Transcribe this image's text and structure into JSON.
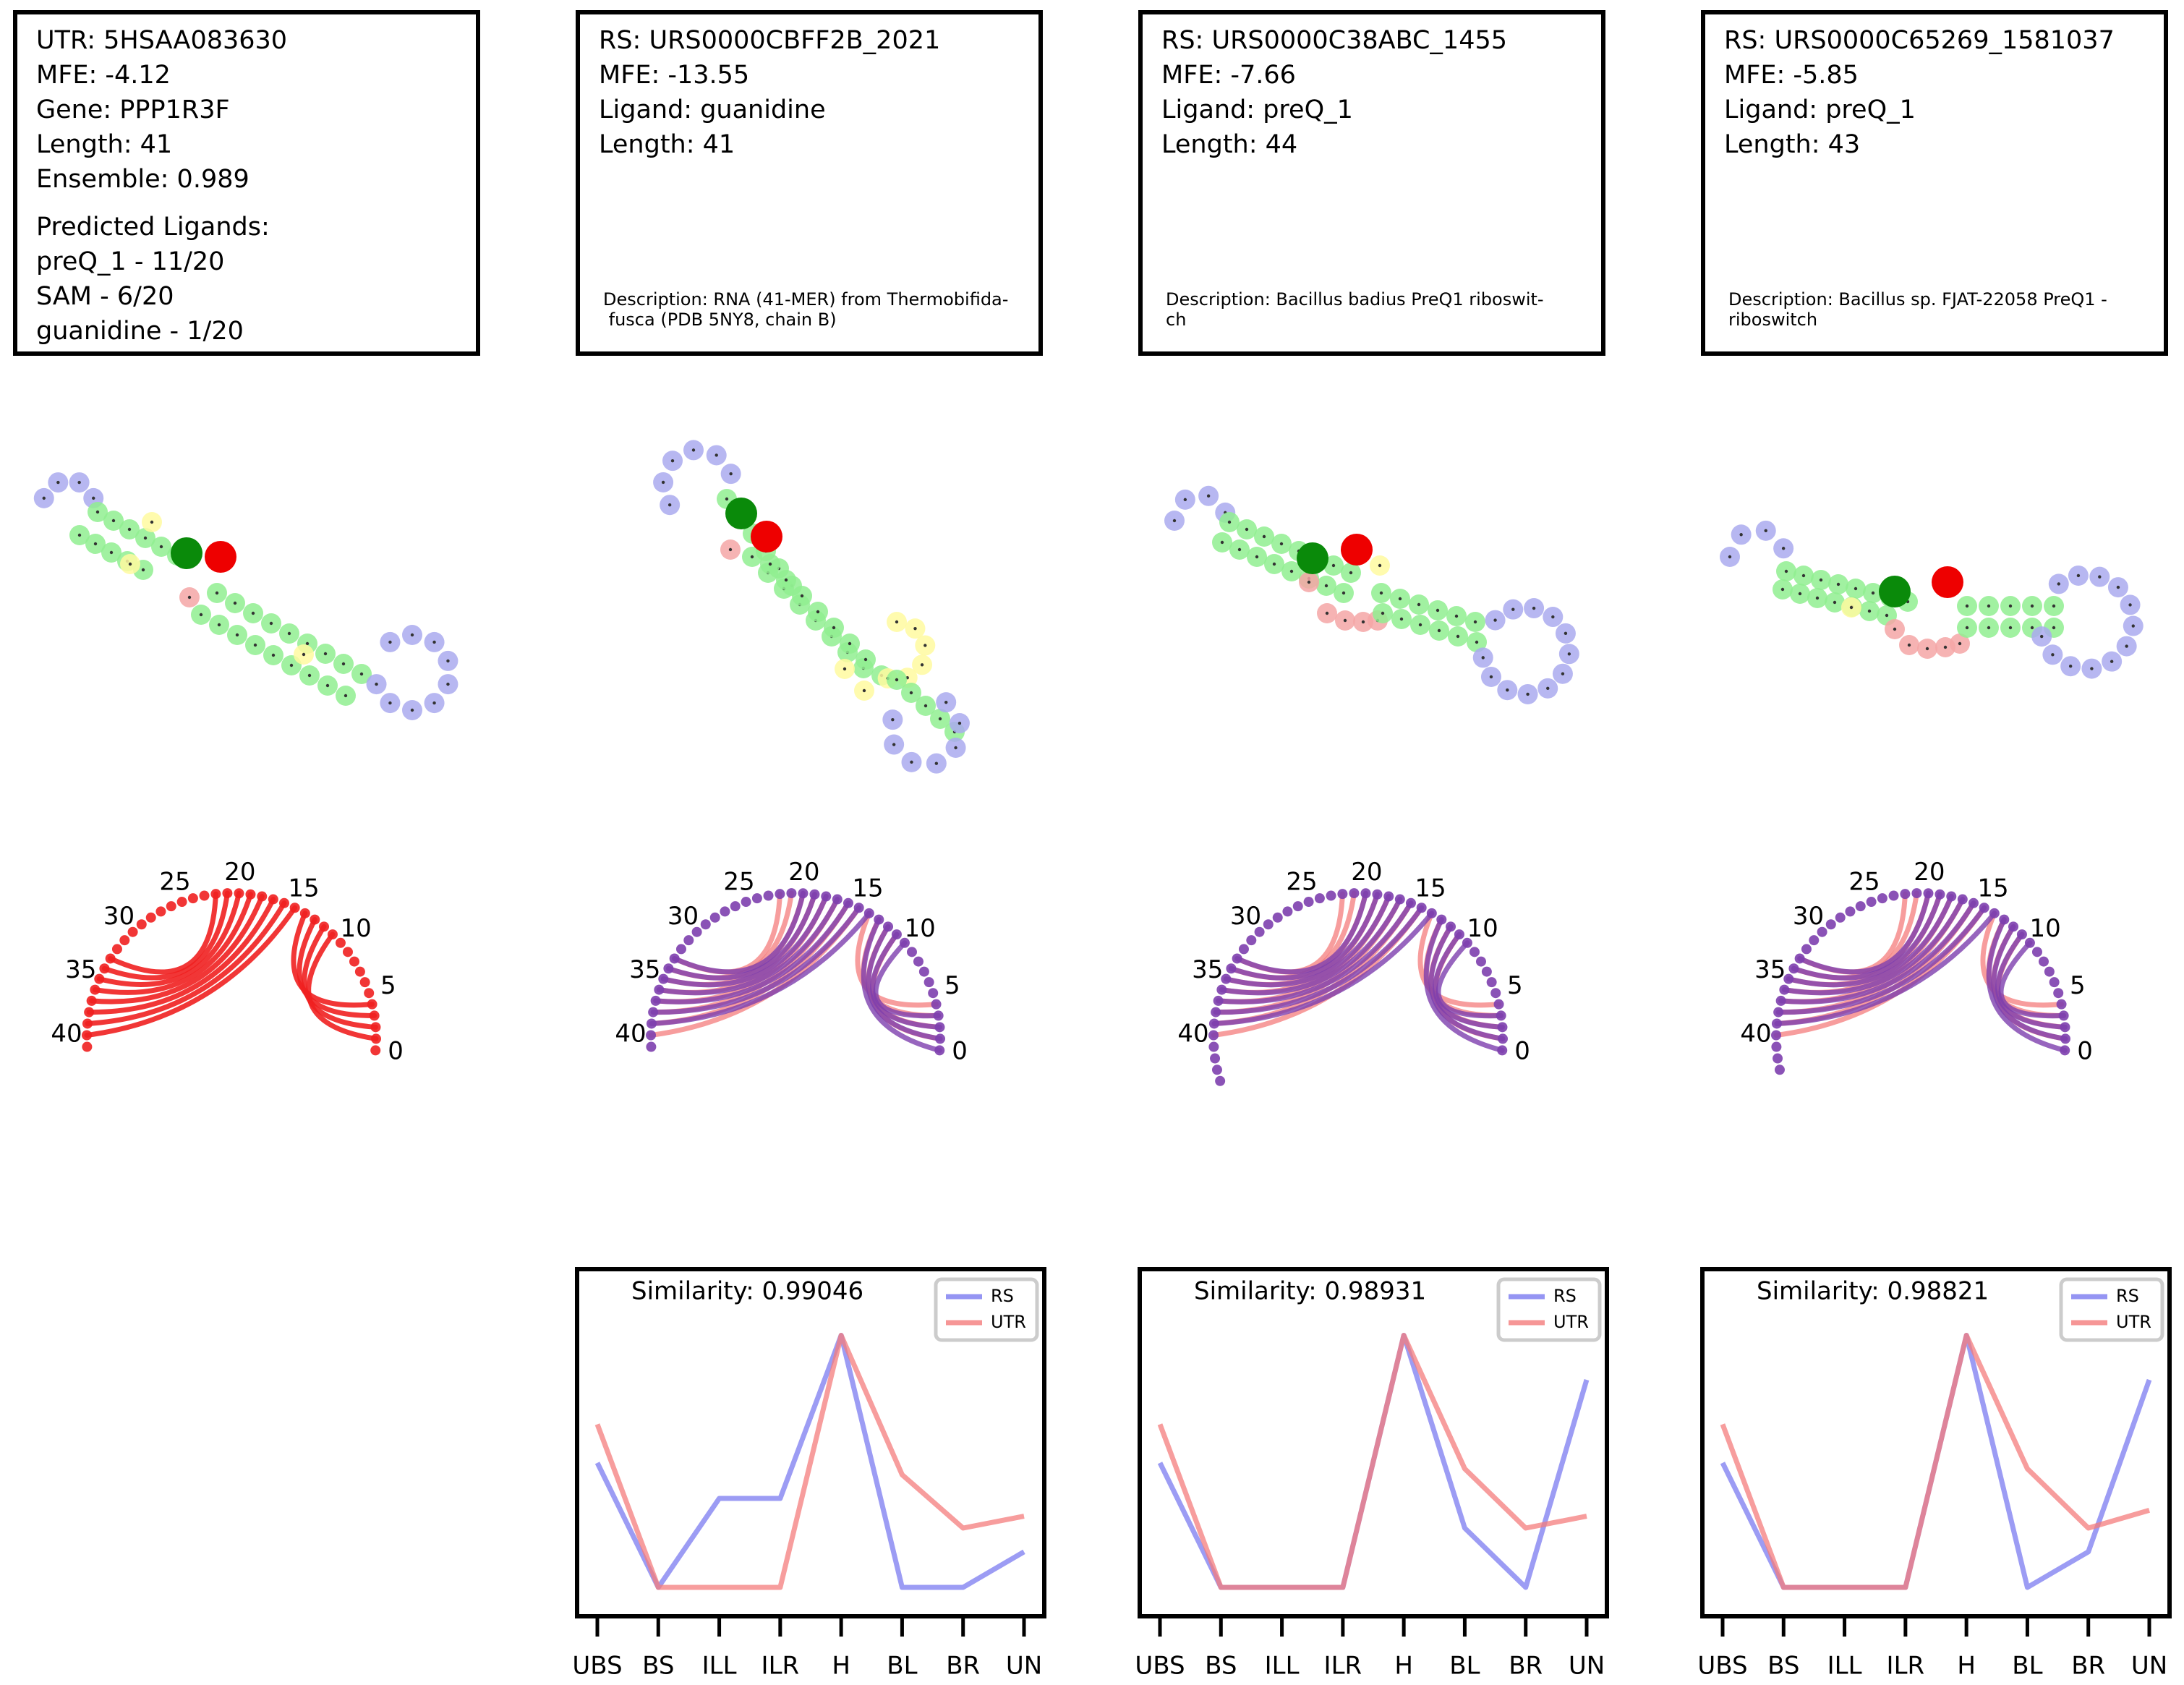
{
  "colors": {
    "rs": "#7b7bf0",
    "utr": "#f47c7c",
    "overlap": "#7d3fae",
    "utr_arc": "#f02020",
    "node_paired": "#90ee90",
    "node_loop": "#aaaaee",
    "node_bulge": "#fffaa0",
    "node_pink": "#f4a6a6",
    "marker_green": "#0a8a0a",
    "marker_red": "#ee0000"
  },
  "cards": [
    {
      "lines": [
        "UTR: 5HSAA083630",
        "MFE: -4.12",
        "Gene: PPP1R3F",
        "Length: 41",
        "Ensemble: 0.989"
      ],
      "lines2": [
        "Predicted Ligands:",
        "preQ_1 - 11/20",
        "SAM - 6/20",
        "guanidine - 1/20"
      ],
      "description": ""
    },
    {
      "lines": [
        "RS: URS0000CBFF2B_2021",
        "MFE: -13.55",
        "Ligand: guanidine",
        "Length: 41"
      ],
      "lines2": [],
      "description": "Description: RNA (41-MER) from Thermobifida-\n fusca (PDB 5NY8, chain B)"
    },
    {
      "lines": [
        "RS: URS0000C38ABC_1455",
        "MFE: -7.66",
        "Ligand: preQ_1",
        "Length: 44"
      ],
      "lines2": [],
      "description": "Description: Bacillus badius PreQ1 riboswit-\nch"
    },
    {
      "lines": [
        "RS: URS0000C65269_1581037",
        "MFE: -5.85",
        "Ligand: preQ_1",
        "Length: 43"
      ],
      "lines2": [],
      "description": "Description: Bacillus sp. FJAT-22058 PreQ1 -\nriboswitch"
    }
  ],
  "arc_labels": [
    "0",
    "5",
    "10",
    "15",
    "20",
    "25",
    "30",
    "35",
    "40"
  ],
  "chart_data": [
    {
      "type": "line",
      "title": "Similarity: 0.99046",
      "categories": [
        "UBS",
        "BS",
        "ILL",
        "ILR",
        "H",
        "BL",
        "BR",
        "UN"
      ],
      "legend": "top-right",
      "series": [
        {
          "name": "RS",
          "values": [
            0.42,
            0.0,
            0.3,
            0.3,
            0.85,
            0.0,
            0.0,
            0.12
          ]
        },
        {
          "name": "UTR",
          "values": [
            0.55,
            0.0,
            0.0,
            0.0,
            0.85,
            0.38,
            0.2,
            0.24
          ]
        }
      ]
    },
    {
      "type": "line",
      "title": "Similarity: 0.98931",
      "categories": [
        "UBS",
        "BS",
        "ILL",
        "ILR",
        "H",
        "BL",
        "BR",
        "UN"
      ],
      "legend": "top-right",
      "series": [
        {
          "name": "RS",
          "values": [
            0.42,
            0.0,
            0.0,
            0.0,
            0.85,
            0.2,
            0.0,
            0.7
          ]
        },
        {
          "name": "UTR",
          "values": [
            0.55,
            0.0,
            0.0,
            0.0,
            0.85,
            0.4,
            0.2,
            0.24
          ]
        }
      ]
    },
    {
      "type": "line",
      "title": "Similarity: 0.98821",
      "categories": [
        "UBS",
        "BS",
        "ILL",
        "ILR",
        "H",
        "BL",
        "BR",
        "UN"
      ],
      "legend": "top-right",
      "series": [
        {
          "name": "RS",
          "values": [
            0.42,
            0.0,
            0.0,
            0.0,
            0.85,
            0.0,
            0.12,
            0.7
          ]
        },
        {
          "name": "UTR",
          "values": [
            0.55,
            0.0,
            0.0,
            0.0,
            0.85,
            0.4,
            0.2,
            0.26
          ]
        }
      ]
    }
  ]
}
